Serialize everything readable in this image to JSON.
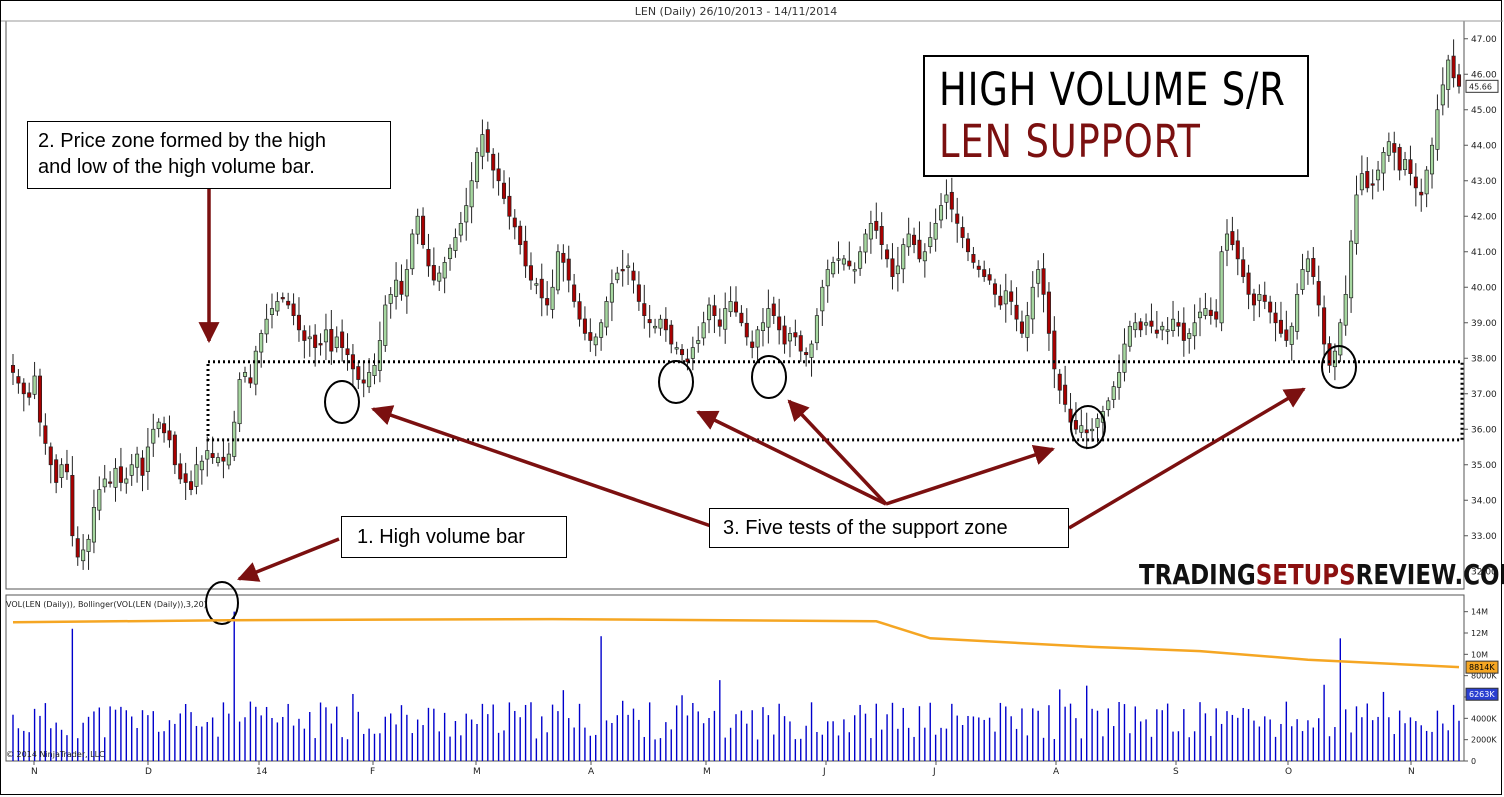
{
  "chart_title": "LEN (Daily)  26/10/2013 - 14/11/2014",
  "annotations": {
    "zone_note": [
      "2. Price zone formed by the high",
      "and low of the high volume bar."
    ],
    "volume_note": "1. High volume bar",
    "tests_note": "3. Five tests of the support zone"
  },
  "title_box": {
    "line1": "HIGH VOLUME S/R",
    "line2": "LEN SUPPORT"
  },
  "brand": {
    "part1": "TRADING",
    "part2": "SETUPS",
    "part3": "REVIEW.COM"
  },
  "volume_panel_label": "VOL(LEN (Daily)), Bollinger(VOL(LEN (Daily)),3,20)",
  "copyright": "© 2014 NinjaTrader, LLC",
  "colors": {
    "up": "#a6d7a0",
    "down": "#a80000",
    "volume": "#0000cc",
    "bollinger": "#f5a623",
    "arrow": "#7b1010",
    "brand_accent": "#8b1010"
  },
  "chart_data": [
    {
      "type": "candlestick",
      "ylim": [
        31.5,
        47.5
      ],
      "yticks": [
        "32.00",
        "33.00",
        "34.00",
        "35.00",
        "36.00",
        "37.00",
        "38.00",
        "39.00",
        "40.00",
        "41.00",
        "42.00",
        "43.00",
        "44.00",
        "45.00",
        "46.00",
        "47.00"
      ],
      "last_price_label": "45.66",
      "xticks": [
        "N",
        "D",
        "14",
        "F",
        "M",
        "A",
        "M",
        "J",
        "J",
        "A",
        "S",
        "O",
        "N"
      ],
      "support_zone": [
        35.7,
        37.9
      ],
      "closes": [
        37.6,
        37.3,
        37.0,
        36.9,
        37.5,
        36.2,
        35.6,
        35.0,
        34.5,
        35.0,
        34.8,
        33.0,
        32.4,
        32.6,
        32.9,
        33.8,
        34.3,
        34.6,
        34.5,
        34.9,
        34.5,
        34.6,
        35.0,
        35.3,
        34.7,
        35.5,
        36.0,
        36.2,
        35.9,
        35.7,
        35.0,
        34.6,
        34.5,
        34.3,
        35.0,
        35.1,
        35.4,
        35.2,
        35.2,
        35.1,
        35.3,
        36.2,
        37.4,
        37.6,
        37.3,
        38.2,
        38.7,
        39.1,
        39.4,
        39.6,
        39.7,
        39.5,
        39.2,
        38.8,
        38.5,
        38.6,
        38.3,
        38.4,
        38.8,
        38.2,
        38.6,
        38.3,
        38.1,
        37.7,
        37.4,
        37.3,
        37.6,
        37.8,
        38.5,
        39.5,
        39.8,
        40.2,
        39.8,
        40.5,
        41.5,
        42.0,
        41.2,
        40.6,
        40.2,
        40.4,
        40.7,
        41.1,
        41.4,
        41.8,
        42.3,
        43.0,
        43.8,
        44.3,
        43.8,
        43.3,
        43.0,
        42.5,
        42.0,
        41.7,
        41.2,
        40.6,
        40.2,
        40.1,
        39.7,
        39.5,
        40.0,
        41.0,
        40.7,
        40.2,
        39.6,
        39.1,
        38.7,
        38.5,
        38.6,
        39.0,
        39.6,
        40.1,
        40.4,
        40.5,
        40.6,
        40.2,
        39.6,
        39.2,
        39.0,
        38.9,
        39.1,
        38.8,
        38.4,
        38.3,
        38.1,
        37.9,
        38.3,
        38.5,
        39.0,
        39.5,
        39.2,
        38.9,
        39.4,
        39.6,
        39.3,
        39.0,
        38.6,
        38.3,
        38.8,
        39.0,
        39.4,
        39.2,
        38.8,
        38.4,
        38.7,
        38.6,
        38.2,
        38.1,
        38.4,
        39.2,
        40.0,
        40.5,
        40.7,
        40.8,
        40.8,
        40.6,
        40.5,
        41.0,
        41.5,
        41.8,
        41.6,
        41.2,
        40.8,
        40.3,
        40.6,
        41.2,
        41.5,
        41.2,
        40.8,
        41.0,
        41.4,
        41.8,
        42.3,
        42.6,
        42.2,
        41.8,
        41.4,
        41.0,
        40.7,
        40.5,
        40.3,
        40.2,
        39.8,
        39.5,
        39.9,
        39.6,
        39.1,
        38.7,
        39.2,
        40.0,
        40.5,
        39.8,
        38.7,
        37.7,
        37.1,
        36.7,
        36.2,
        36.0,
        36.1,
        35.9,
        36.0,
        36.3,
        36.5,
        36.8,
        37.2,
        37.6,
        38.4,
        38.9,
        39.0,
        38.8,
        39.0,
        38.9,
        38.7,
        38.9,
        38.8,
        39.1,
        38.9,
        38.5,
        38.7,
        39.0,
        39.3,
        39.4,
        39.2,
        39.1,
        41.0,
        41.5,
        41.2,
        40.8,
        40.3,
        39.8,
        39.5,
        39.8,
        39.6,
        39.3,
        39.0,
        38.7,
        38.5,
        38.9,
        39.8,
        40.5,
        40.8,
        40.3,
        39.5,
        38.4,
        37.8,
        38.2,
        39.0,
        39.8,
        41.3,
        42.6,
        43.2,
        42.8,
        42.9,
        43.3,
        43.8,
        44.1,
        43.8,
        43.3,
        43.6,
        43.2,
        42.8,
        42.6,
        43.3,
        44.0,
        45.0,
        45.7,
        46.4,
        45.9,
        45.66
      ]
    },
    {
      "type": "bar",
      "title": "VOL(LEN (Daily)), Bollinger(VOL(LEN (Daily)),3,20)",
      "ylim": [
        0,
        15000000
      ],
      "yticks": [
        "0",
        "2000K",
        "4000K",
        "6000K",
        "8000K",
        "10M",
        "12M",
        "14M"
      ],
      "badges": [
        "8814K",
        "6263K"
      ],
      "spikes": [
        {
          "index": 11,
          "value": 12400000
        },
        {
          "index": 41,
          "value": 14000000
        },
        {
          "index": 109,
          "value": 11700000
        },
        {
          "index": 246,
          "value": 11500000
        }
      ],
      "bollinger": [
        [
          0,
          13000000
        ],
        [
          40,
          13200000
        ],
        [
          100,
          13300000
        ],
        [
          160,
          13100000
        ],
        [
          170,
          11500000
        ],
        [
          200,
          10700000
        ],
        [
          220,
          10300000
        ],
        [
          240,
          9500000
        ],
        [
          260,
          9000000
        ],
        [
          287,
          8800000
        ]
      ]
    }
  ]
}
